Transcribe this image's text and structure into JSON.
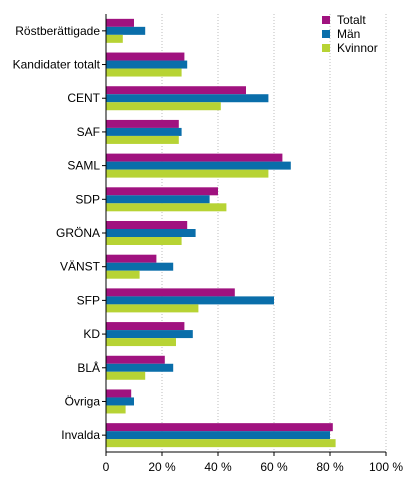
{
  "chart_data": {
    "type": "bar",
    "orientation": "horizontal",
    "categories": [
      "Röstberättigade",
      "Kandidater totalt",
      "CENT",
      "SAF",
      "SAML",
      "SDP",
      "GRÖNA",
      "VÄNST",
      "SFP",
      "KD",
      "BLÅ",
      "Övriga",
      "Invalda"
    ],
    "series": [
      {
        "name": "Totalt",
        "color": "#a0127f",
        "values": [
          10,
          28,
          50,
          26,
          63,
          40,
          29,
          18,
          46,
          28,
          21,
          9,
          81
        ]
      },
      {
        "name": "Män",
        "color": "#0a6eaa",
        "values": [
          14,
          29,
          58,
          27,
          66,
          37,
          32,
          24,
          60,
          31,
          24,
          10,
          80
        ]
      },
      {
        "name": "Kvinnor",
        "color": "#b7d334",
        "values": [
          6,
          27,
          41,
          26,
          58,
          43,
          27,
          12,
          33,
          25,
          14,
          7,
          82
        ]
      }
    ],
    "xlim": [
      0,
      100
    ],
    "xticks": [
      0,
      20,
      40,
      60,
      80,
      100
    ],
    "xtick_labels": [
      "0",
      "20 %",
      "40 %",
      "60 %",
      "80 %",
      "100 %"
    ],
    "grid": "vertical",
    "legend_position": "top-right"
  }
}
